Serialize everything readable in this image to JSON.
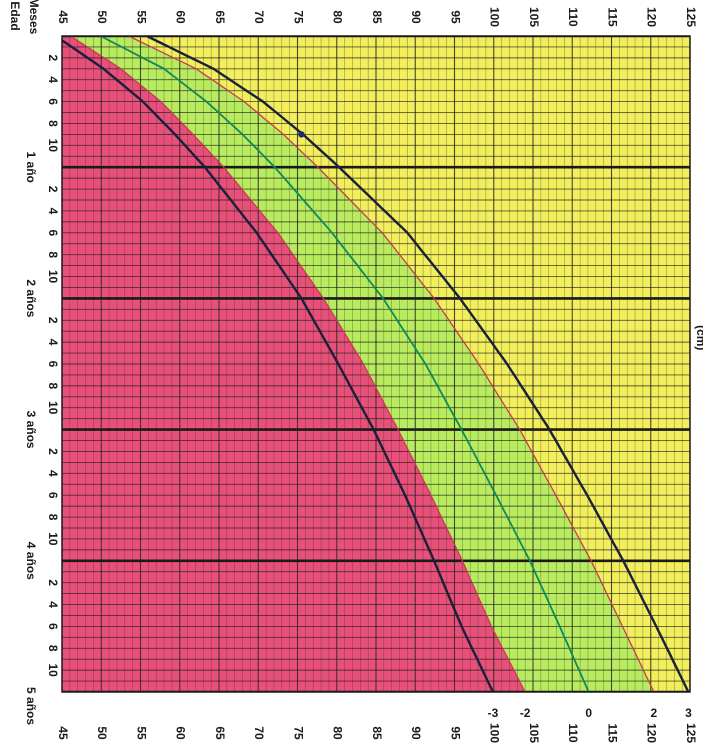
{
  "chart_data": {
    "type": "line",
    "orientation": "rotated-90-clockwise",
    "x_axis": {
      "labels": [
        "Edad",
        "Meses"
      ],
      "range_months": [
        0,
        60
      ],
      "month_ticks": [
        "2",
        "4",
        "6",
        "8",
        "10"
      ],
      "year_labels": [
        "1 año",
        "2 años",
        "3 años",
        "4 años",
        "5 años"
      ]
    },
    "y_axis": {
      "unit_label": "(cm)",
      "range": [
        45,
        125
      ],
      "ticks": [
        45,
        50,
        55,
        60,
        65,
        70,
        75,
        80,
        85,
        90,
        95,
        100,
        105,
        110,
        115,
        120,
        125
      ]
    },
    "series": [
      {
        "name": "-3",
        "color": "#1b1f3a",
        "x": [
          0,
          3,
          6,
          9,
          12,
          18,
          24,
          30,
          36,
          42,
          48,
          54,
          60
        ],
        "y": [
          44.2,
          50.3,
          55.3,
          59.4,
          63.2,
          69.8,
          75.5,
          80.2,
          84.7,
          88.7,
          92.4,
          95.9,
          99.9
        ]
      },
      {
        "name": "-2",
        "color": "#c83a52",
        "x": [
          0,
          3,
          6,
          9,
          12,
          18,
          24,
          30,
          36,
          42,
          48,
          54,
          60
        ],
        "y": [
          46.1,
          52.5,
          57.6,
          61.7,
          65.6,
          72.5,
          78.3,
          83.4,
          87.8,
          92.0,
          96.0,
          99.7,
          104.0
        ]
      },
      {
        "name": "0",
        "color": "#10895a",
        "x": [
          0,
          3,
          6,
          9,
          12,
          18,
          24,
          30,
          36,
          42,
          48,
          54,
          60
        ],
        "y": [
          49.9,
          58.0,
          63.4,
          68.0,
          72.1,
          79.4,
          85.9,
          91.3,
          95.9,
          100.3,
          104.6,
          108.4,
          112.1
        ]
      },
      {
        "name": "2",
        "color": "#c83a52",
        "x": [
          0,
          3,
          6,
          9,
          12,
          18,
          24,
          30,
          36,
          42,
          48,
          54,
          60
        ],
        "y": [
          53.5,
          62.1,
          68.2,
          73.2,
          77.6,
          85.8,
          92.4,
          98.1,
          103.3,
          107.9,
          112.4,
          116.4,
          120.4
        ]
      },
      {
        "name": "3",
        "color": "#1b1f3a",
        "x": [
          0,
          3,
          6,
          9,
          12,
          18,
          24,
          30,
          36,
          42,
          48,
          54,
          60
        ],
        "y": [
          55.8,
          64.3,
          70.6,
          75.7,
          80.3,
          89.0,
          95.7,
          101.7,
          107.1,
          111.9,
          116.5,
          120.7,
          124.8
        ]
      }
    ],
    "zones": {
      "below_minus2": "#e8507a",
      "minus2_to_plus2": "#b8ec5e",
      "above_plus2": "#f2ee5c"
    },
    "point": {
      "x": 9,
      "y": 75.5
    },
    "grid": true
  }
}
